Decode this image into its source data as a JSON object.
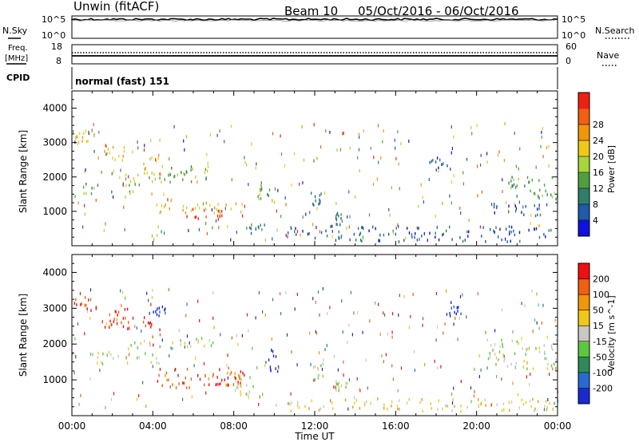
{
  "header": {
    "radar": "Unwin (fitACF)",
    "beam": "Beam 10",
    "dates": "05/Oct/2016 - 06/Oct/2016"
  },
  "strip_nsky": {
    "label": "N.Sky",
    "left_ticks": [
      "10^5",
      "10^0"
    ],
    "right_ticks": [
      "10^5",
      "10^0"
    ],
    "right_label": "N.Search"
  },
  "strip_freq": {
    "label_line1": "Freq.",
    "label_line2": "[MHz]",
    "left_ticks": [
      "18",
      "8"
    ],
    "right_ticks": [
      "60",
      "0"
    ],
    "right_label": "Nave"
  },
  "strip_cpid": {
    "label": "CPID",
    "mode_text": "normal (fast) 151"
  },
  "chart_data": [
    {
      "type": "heatmap",
      "name": "Power panel",
      "xlabel": "",
      "ylabel": "Slant Range [km]",
      "xlim_hours": [
        0,
        24
      ],
      "ylim": [
        0,
        4500
      ],
      "y_ticks": [
        "1000",
        "2000",
        "3000",
        "4000"
      ],
      "colorbar_label": "Power [dB]",
      "colorbar_ticks": [
        "4",
        "8",
        "12",
        "16",
        "20",
        "24",
        "28"
      ],
      "colorbar_colors": [
        "#1010e0",
        "#205aa8",
        "#2f7f6a",
        "#4fa040",
        "#a6d63b",
        "#f0c818",
        "#f0960a",
        "#f06010",
        "#ee2010"
      ],
      "blobs": [
        {
          "x0": 0.1,
          "x1": 1.0,
          "y0": 2950,
          "y1": 3400,
          "level": 5
        },
        {
          "x0": 1.5,
          "x1": 2.6,
          "y0": 2500,
          "y1": 3000,
          "level": 5
        },
        {
          "x0": 3.5,
          "x1": 4.3,
          "y0": 2100,
          "y1": 2700,
          "level": 5
        },
        {
          "x0": 4.3,
          "x1": 6.8,
          "y0": 1900,
          "y1": 2350,
          "level": 3
        },
        {
          "x0": 0.5,
          "x1": 3.5,
          "y0": 1550,
          "y1": 1850,
          "level": 3
        },
        {
          "x0": 2.5,
          "x1": 5.5,
          "y0": 1850,
          "y1": 2150,
          "level": 4
        },
        {
          "x0": 4.0,
          "x1": 8.5,
          "y0": 950,
          "y1": 1350,
          "level": 5
        },
        {
          "x0": 5.5,
          "x1": 7.8,
          "y0": 800,
          "y1": 1100,
          "level": 8
        },
        {
          "x0": 8.5,
          "x1": 9.5,
          "y0": 400,
          "y1": 700,
          "level": 2
        },
        {
          "x0": 9.0,
          "x1": 10.0,
          "y0": 1300,
          "y1": 1900,
          "level": 3
        },
        {
          "x0": 11.8,
          "x1": 12.3,
          "y0": 1200,
          "y1": 1600,
          "level": 2
        },
        {
          "x0": 13.0,
          "x1": 13.6,
          "y0": 600,
          "y1": 1000,
          "level": 2
        },
        {
          "x0": 10.5,
          "x1": 24.0,
          "y0": 150,
          "y1": 600,
          "level": 1
        },
        {
          "x0": 17.5,
          "x1": 19.5,
          "y0": 2200,
          "y1": 2600,
          "level": 1
        },
        {
          "x0": 21.5,
          "x1": 24.0,
          "y0": 1400,
          "y1": 2100,
          "level": 3
        },
        {
          "x0": 20.5,
          "x1": 23.5,
          "y0": 900,
          "y1": 1300,
          "level": 1
        }
      ]
    },
    {
      "type": "heatmap",
      "name": "Velocity panel",
      "xlabel": "Time UT",
      "ylabel": "Slant Range [km]",
      "xlim_hours": [
        0,
        24
      ],
      "ylim": [
        0,
        4500
      ],
      "x_ticks": [
        "00:00",
        "04:00",
        "08:00",
        "12:00",
        "16:00",
        "20:00",
        "00:00"
      ],
      "y_ticks": [
        "1000",
        "2000",
        "3000",
        "4000"
      ],
      "colorbar_label": "Velocity [m s^-1]",
      "colorbar_ticks": [
        "200",
        "100",
        "50",
        "15",
        "-15",
        "-50",
        "-100",
        "-200"
      ],
      "colorbar_colors": [
        "#1a2ad0",
        "#2a6ad0",
        "#2f8a5a",
        "#5cc83c",
        "#c8c8c0",
        "#f0c818",
        "#f0960a",
        "#f06010",
        "#ee1010"
      ],
      "blobs": [
        {
          "x0": 0.1,
          "x1": 1.2,
          "y0": 2950,
          "y1": 3400,
          "level": 8
        },
        {
          "x0": 1.5,
          "x1": 3.0,
          "y0": 2400,
          "y1": 3100,
          "level": 8
        },
        {
          "x0": 3.5,
          "x1": 4.4,
          "y0": 2000,
          "y1": 2800,
          "level": 8
        },
        {
          "x0": 4.0,
          "x1": 4.6,
          "y0": 2800,
          "y1": 3100,
          "level": 0
        },
        {
          "x0": 0.8,
          "x1": 4.5,
          "y0": 1500,
          "y1": 1800,
          "level": 4
        },
        {
          "x0": 2.5,
          "x1": 7.0,
          "y0": 1900,
          "y1": 2200,
          "level": 4
        },
        {
          "x0": 4.0,
          "x1": 8.5,
          "y0": 800,
          "y1": 1400,
          "level": 7
        },
        {
          "x0": 6.5,
          "x1": 8.5,
          "y0": 900,
          "y1": 1300,
          "level": 8
        },
        {
          "x0": 8.0,
          "x1": 9.0,
          "y0": 600,
          "y1": 900,
          "level": 4
        },
        {
          "x0": 9.5,
          "x1": 10.2,
          "y0": 1200,
          "y1": 1900,
          "level": 0
        },
        {
          "x0": 11.8,
          "x1": 12.4,
          "y0": 1100,
          "y1": 1500,
          "level": 4
        },
        {
          "x0": 13.0,
          "x1": 13.6,
          "y0": 700,
          "y1": 1000,
          "level": 4
        },
        {
          "x0": 10.0,
          "x1": 24.0,
          "y0": 150,
          "y1": 500,
          "level": 5
        },
        {
          "x0": 20.5,
          "x1": 24.0,
          "y0": 1300,
          "y1": 2200,
          "level": 4
        },
        {
          "x0": 18.5,
          "x1": 19.3,
          "y0": 2800,
          "y1": 3200,
          "level": 0
        }
      ]
    }
  ]
}
